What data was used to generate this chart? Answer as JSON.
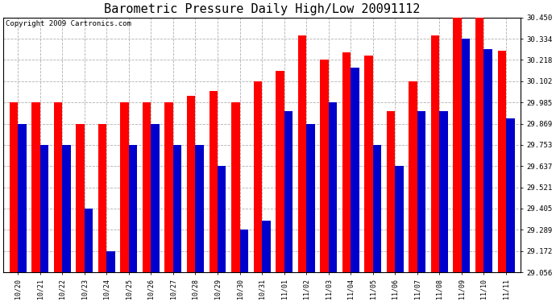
{
  "title": "Barometric Pressure Daily High/Low 20091112",
  "copyright": "Copyright 2009 Cartronics.com",
  "categories": [
    "10/20",
    "10/21",
    "10/22",
    "10/23",
    "10/24",
    "10/25",
    "10/26",
    "10/27",
    "10/28",
    "10/29",
    "10/30",
    "10/31",
    "11/01",
    "11/02",
    "11/03",
    "11/04",
    "11/05",
    "11/06",
    "11/07",
    "11/08",
    "11/09",
    "11/10",
    "11/11"
  ],
  "highs": [
    29.985,
    29.985,
    29.985,
    29.869,
    29.869,
    29.985,
    29.985,
    29.985,
    30.02,
    30.05,
    29.985,
    30.102,
    30.16,
    30.35,
    30.218,
    30.26,
    30.24,
    29.94,
    30.102,
    30.35,
    30.45,
    30.45,
    30.27
  ],
  "lows": [
    29.869,
    29.753,
    29.753,
    29.405,
    29.172,
    29.753,
    29.869,
    29.753,
    29.753,
    29.637,
    29.289,
    29.34,
    29.94,
    29.869,
    29.985,
    30.175,
    29.753,
    29.637,
    29.94,
    29.94,
    30.334,
    30.275,
    29.9
  ],
  "ylim_min": 29.056,
  "ylim_max": 30.45,
  "yticks": [
    29.056,
    29.172,
    29.289,
    29.405,
    29.521,
    29.637,
    29.753,
    29.869,
    29.985,
    30.102,
    30.218,
    30.334,
    30.45
  ],
  "bar_width": 0.38,
  "high_color": "#ff0000",
  "low_color": "#0000cc",
  "bg_color": "#ffffff",
  "plot_bg_color": "#ffffff",
  "grid_color": "#b0b0b0",
  "title_fontsize": 11,
  "copyright_fontsize": 6.5,
  "tick_fontsize": 6,
  "ytick_fontsize": 6.5
}
